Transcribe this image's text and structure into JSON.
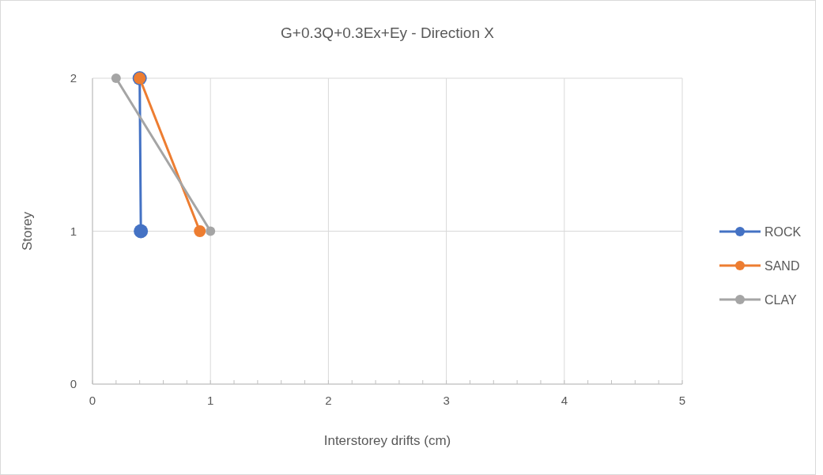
{
  "chart_data": {
    "type": "line",
    "title": "G+0.3Q+0.3Ex+Ey - Direction X",
    "xlabel": "Interstorey drifts (cm)",
    "ylabel": "Storey",
    "xlim": [
      0,
      5
    ],
    "ylim": [
      0,
      2
    ],
    "xticks": [
      0,
      {
        "value": 0.2,
        "label": null
      },
      {
        "value": 0.4,
        "label": null
      },
      {
        "value": 0.6,
        "label": null
      },
      {
        "value": 0.8,
        "label": null
      },
      1,
      {
        "value": 1.2,
        "label": null
      },
      {
        "value": 1.4,
        "label": null
      },
      {
        "value": 1.6,
        "label": null
      },
      {
        "value": 1.8,
        "label": null
      },
      2,
      {
        "value": 2.2,
        "label": null
      },
      {
        "value": 2.4,
        "label": null
      },
      {
        "value": 2.6,
        "label": null
      },
      {
        "value": 2.8,
        "label": null
      },
      3,
      {
        "value": 3.2,
        "label": null
      },
      {
        "value": 3.4,
        "label": null
      },
      {
        "value": 3.6,
        "label": null
      },
      {
        "value": 3.8,
        "label": null
      },
      4,
      {
        "value": 4.2,
        "label": null
      },
      {
        "value": 4.4,
        "label": null
      },
      {
        "value": 4.6,
        "label": null
      },
      {
        "value": 4.8,
        "label": null
      },
      5
    ],
    "yticks": [
      0,
      1,
      2
    ],
    "grid": true,
    "legend": "right",
    "marker": "circle",
    "line_style": "solid",
    "series": [
      {
        "name": "ROCK",
        "color": "#4472c4",
        "x": [
          0.41,
          0.4
        ],
        "values": [
          1,
          2
        ]
      },
      {
        "name": "SAND",
        "color": "#ed7d31",
        "x": [
          0.91,
          0.4
        ],
        "values": [
          1,
          2
        ]
      },
      {
        "name": "CLAY",
        "color": "#a5a5a5",
        "x": [
          1.0,
          0.2
        ],
        "values": [
          1,
          2
        ]
      }
    ]
  }
}
